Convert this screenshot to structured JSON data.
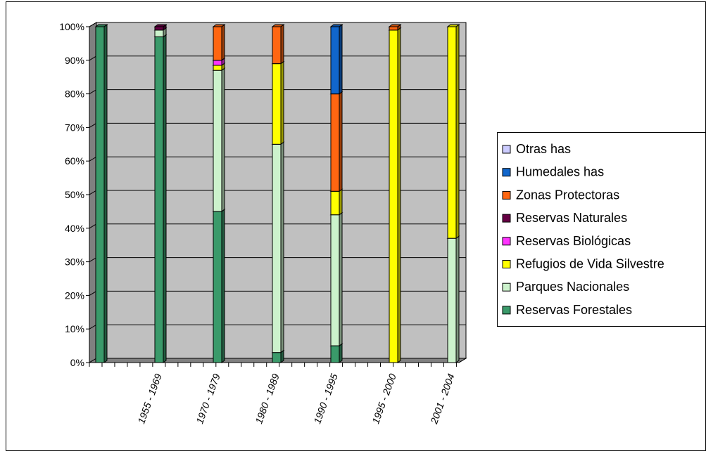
{
  "chart_data": {
    "type": "bar",
    "stacked": true,
    "percent_stacked": true,
    "three_d": true,
    "categories": [
      "",
      "1955 - 1969",
      "1970 - 1979",
      "1980 - 1989",
      "1990 - 1995",
      "1995 - 2000",
      "2001 - 2004"
    ],
    "x_tick_labels": [
      "1955 - 1969",
      "1970 - 1979",
      "1980 - 1989",
      "1990 - 1995",
      "1995 - 2000",
      "2001 - 2004"
    ],
    "ylim": [
      0,
      100
    ],
    "y_ticks": [
      "0%",
      "10%",
      "20%",
      "30%",
      "40%",
      "50%",
      "60%",
      "70%",
      "80%",
      "90%",
      "100%"
    ],
    "grid": true,
    "legend_position": "right",
    "series": [
      {
        "name": "Reservas Forestales",
        "color": "#3a9a6a",
        "values": [
          100,
          97,
          45,
          3,
          5,
          0,
          0
        ]
      },
      {
        "name": "Parques Nacionales",
        "color": "#ccf2cc",
        "values": [
          0,
          2,
          42,
          62,
          39,
          0,
          37
        ]
      },
      {
        "name": "Refugios de  Vida Silvestre",
        "color": "#ffff00",
        "values": [
          0,
          0,
          1.5,
          24,
          7,
          99,
          63
        ]
      },
      {
        "name": "Reservas Biológicas",
        "color": "#ff33ff",
        "values": [
          0,
          0,
          1.5,
          0,
          0,
          0,
          0
        ]
      },
      {
        "name": "Reservas Naturales",
        "color": "#660044",
        "values": [
          0,
          1,
          0,
          0,
          0,
          0,
          0
        ]
      },
      {
        "name": "Zonas Protectoras",
        "color": "#ff6611",
        "values": [
          0,
          0,
          10,
          11,
          29,
          1,
          0
        ]
      },
      {
        "name": "Humedales has",
        "color": "#1166cc",
        "values": [
          0,
          0,
          0,
          0,
          20,
          0,
          0
        ]
      },
      {
        "name": "Otras has",
        "color": "#ccccff",
        "values": [
          0,
          0,
          0,
          0,
          0,
          0,
          0
        ]
      }
    ],
    "legend_order": [
      "Otras has",
      "Humedales has",
      "Zonas Protectoras",
      "Reservas Naturales",
      "Reservas Biológicas",
      "Refugios de  Vida Silvestre",
      "Parques Nacionales",
      "Reservas Forestales"
    ]
  }
}
